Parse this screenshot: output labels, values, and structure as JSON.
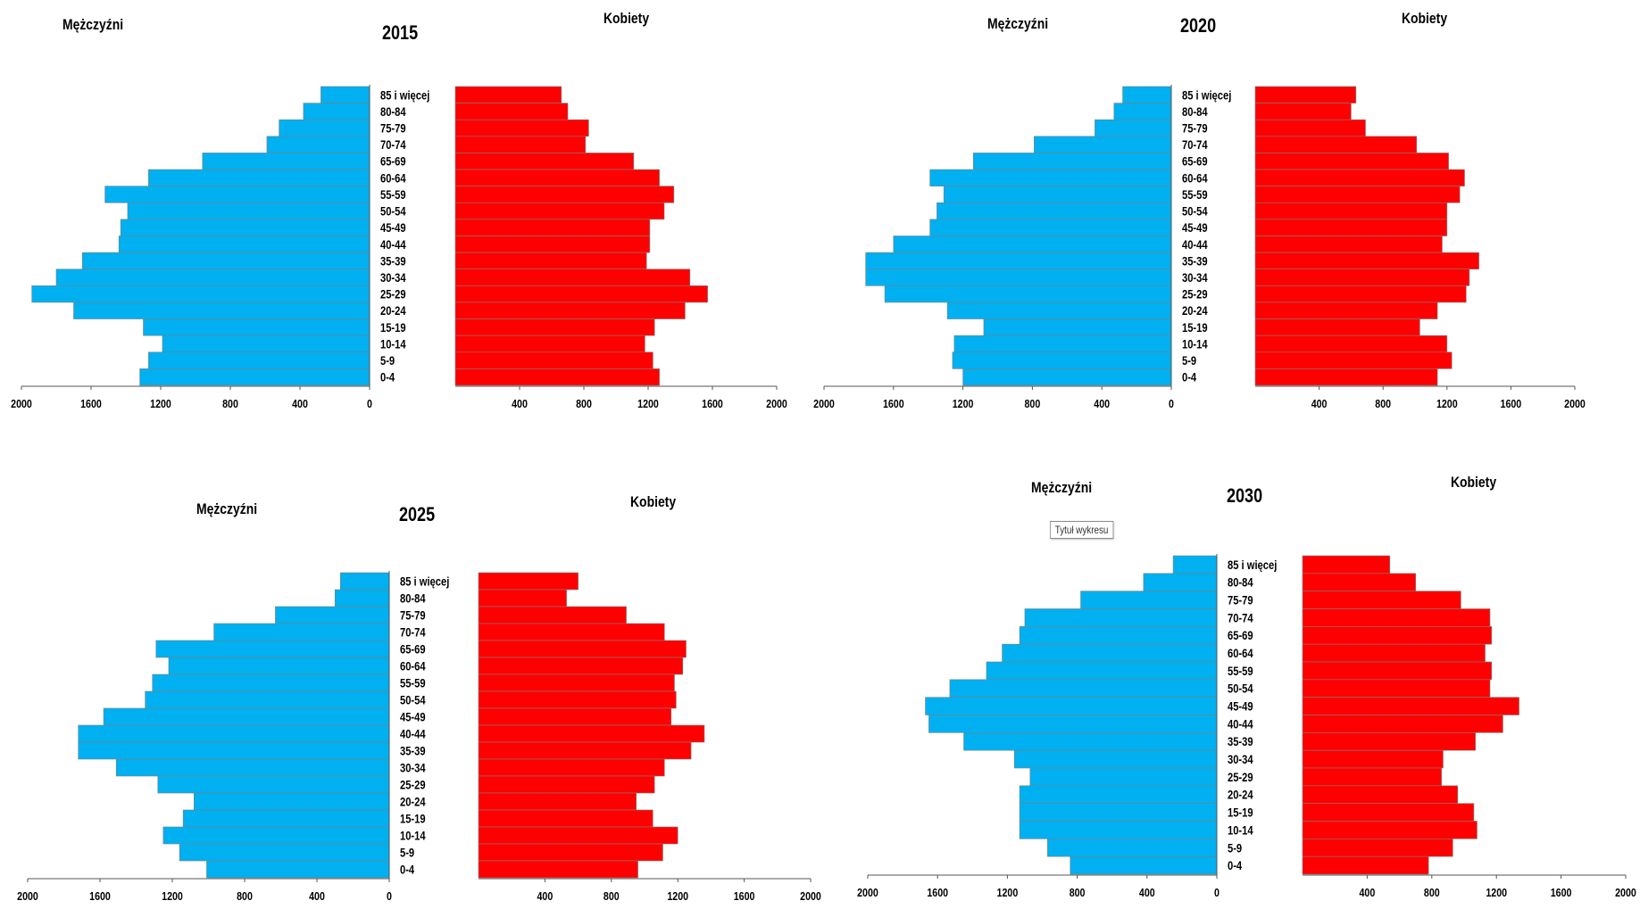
{
  "colors": {
    "men": "#00b0f0",
    "women": "#ff0000",
    "axis": "#555555",
    "text": "#000000"
  },
  "labels": {
    "men": "Mężczyźni",
    "women": "Kobiety"
  },
  "tooltip": "Tytuł wykresu",
  "chart_data": [
    {
      "type": "bar",
      "title": "2015",
      "categories": [
        "85 i więcej",
        "80-84",
        "75-79",
        "70-74",
        "65-69",
        "60-64",
        "55-59",
        "50-54",
        "45-49",
        "40-44",
        "35-39",
        "30-34",
        "25-29",
        "20-24",
        "15-19",
        "10-14",
        "5-9",
        "0-4"
      ],
      "men_ticks": [
        "2000",
        "1600",
        "1200",
        "800",
        "400",
        "0"
      ],
      "women_ticks": [
        "400",
        "800",
        "1200",
        "1600",
        "2000"
      ],
      "series": [
        {
          "name": "Mężczyźni",
          "values": [
            280,
            380,
            520,
            590,
            960,
            1270,
            1520,
            1390,
            1430,
            1440,
            1650,
            1800,
            1940,
            1700,
            1300,
            1190,
            1270,
            1320
          ]
        },
        {
          "name": "Kobiety",
          "values": [
            660,
            700,
            830,
            810,
            1110,
            1270,
            1360,
            1300,
            1210,
            1210,
            1190,
            1460,
            1570,
            1430,
            1240,
            1180,
            1230,
            1270
          ]
        }
      ]
    },
    {
      "type": "bar",
      "title": "2020",
      "categories": [
        "85 i więcej",
        "80-84",
        "75-79",
        "70-74",
        "65-69",
        "60-64",
        "55-59",
        "50-54",
        "45-49",
        "40-44",
        "35-39",
        "30-34",
        "25-29",
        "20-24",
        "15-19",
        "10-14",
        "5-9",
        "0-4"
      ],
      "men_ticks": [
        "2000",
        "1600",
        "1200",
        "800",
        "400",
        "0"
      ],
      "women_ticks": [
        "400",
        "800",
        "1200",
        "1600",
        "2000"
      ],
      "series": [
        {
          "name": "Mężczyźni",
          "values": [
            280,
            330,
            440,
            790,
            1140,
            1390,
            1310,
            1350,
            1390,
            1600,
            1760,
            1760,
            1650,
            1290,
            1080,
            1250,
            1260,
            1200
          ]
        },
        {
          "name": "Kobiety",
          "values": [
            630,
            600,
            690,
            1010,
            1210,
            1310,
            1280,
            1200,
            1200,
            1170,
            1400,
            1340,
            1320,
            1140,
            1030,
            1200,
            1230,
            1140
          ]
        }
      ]
    },
    {
      "type": "bar",
      "title": "2025",
      "categories": [
        "85 i więcej",
        "80-84",
        "75-79",
        "70-74",
        "65-69",
        "60-64",
        "55-59",
        "50-54",
        "45-49",
        "40-44",
        "35-39",
        "30-34",
        "25-29",
        "20-24",
        "15-19",
        "10-14",
        "5-9",
        "0-4"
      ],
      "men_ticks": [
        "2000",
        "1600",
        "1200",
        "800",
        "400",
        "0"
      ],
      "women_ticks": [
        "400",
        "800",
        "1200",
        "1600",
        "2000"
      ],
      "series": [
        {
          "name": "Mężczyźni",
          "values": [
            270,
            300,
            630,
            970,
            1290,
            1220,
            1310,
            1350,
            1580,
            1720,
            1720,
            1510,
            1280,
            1080,
            1140,
            1250,
            1160,
            1010
          ]
        },
        {
          "name": "Kobiety",
          "values": [
            600,
            530,
            890,
            1120,
            1250,
            1230,
            1180,
            1190,
            1160,
            1360,
            1280,
            1120,
            1060,
            950,
            1050,
            1200,
            1110,
            960
          ]
        }
      ]
    },
    {
      "type": "bar",
      "title": "2030",
      "categories": [
        "85 i więcej",
        "80-84",
        "75-79",
        "70-74",
        "65-69",
        "60-64",
        "55-59",
        "50-54",
        "45-49",
        "40-44",
        "35-39",
        "30-34",
        "25-29",
        "20-24",
        "15-19",
        "10-14",
        "5-9",
        "0-4"
      ],
      "men_ticks": [
        "2000",
        "1600",
        "1200",
        "800",
        "400",
        "0"
      ],
      "women_ticks": [
        "400",
        "800",
        "1200",
        "1600",
        "2000"
      ],
      "series": [
        {
          "name": "Mężczyźni",
          "values": [
            250,
            420,
            780,
            1100,
            1130,
            1230,
            1320,
            1530,
            1670,
            1650,
            1450,
            1160,
            1070,
            1130,
            1130,
            1130,
            970,
            840
          ]
        },
        {
          "name": "Kobiety",
          "values": [
            540,
            700,
            980,
            1160,
            1170,
            1130,
            1170,
            1160,
            1340,
            1240,
            1070,
            870,
            860,
            960,
            1060,
            1080,
            930,
            780
          ]
        }
      ]
    }
  ]
}
